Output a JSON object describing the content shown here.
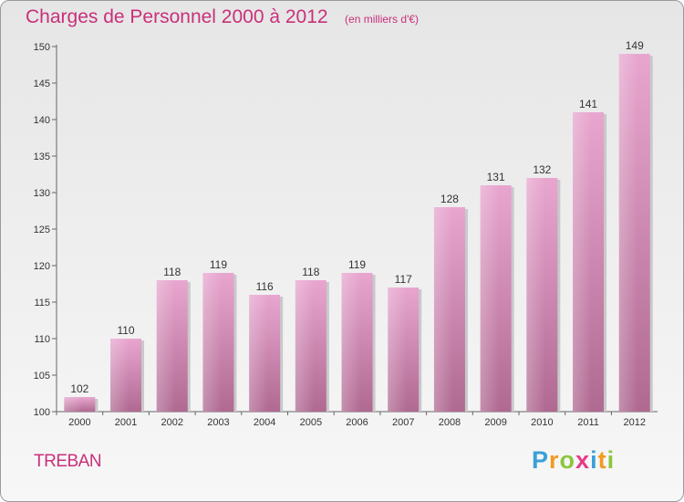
{
  "chart_data": {
    "type": "bar",
    "title": "Charges de Personnel 2000 à 2012",
    "subtitle": "(en milliers d'€)",
    "categories": [
      "2000",
      "2001",
      "2002",
      "2003",
      "2004",
      "2005",
      "2006",
      "2007",
      "2008",
      "2009",
      "2010",
      "2011",
      "2012"
    ],
    "values": [
      102,
      110,
      118,
      119,
      116,
      118,
      119,
      117,
      128,
      131,
      132,
      141,
      149
    ],
    "ylim": [
      100,
      150
    ],
    "yticks": [
      100,
      105,
      110,
      115,
      120,
      125,
      130,
      135,
      140,
      145,
      150
    ],
    "grid": false,
    "bar_color": "#d98cb8"
  },
  "commune": "TREBAN",
  "logo": {
    "text": "Proxiti",
    "letters": [
      {
        "ch": "P",
        "color": "#3aa0d8"
      },
      {
        "ch": "r",
        "color": "#f29a1f"
      },
      {
        "ch": "o",
        "color": "#8cc63f"
      },
      {
        "ch": "x",
        "color": "#e8398a"
      },
      {
        "ch": "i",
        "color": "#3aa0d8"
      },
      {
        "ch": "t",
        "color": "#f29a1f"
      },
      {
        "ch": "i",
        "color": "#8cc63f"
      }
    ]
  }
}
